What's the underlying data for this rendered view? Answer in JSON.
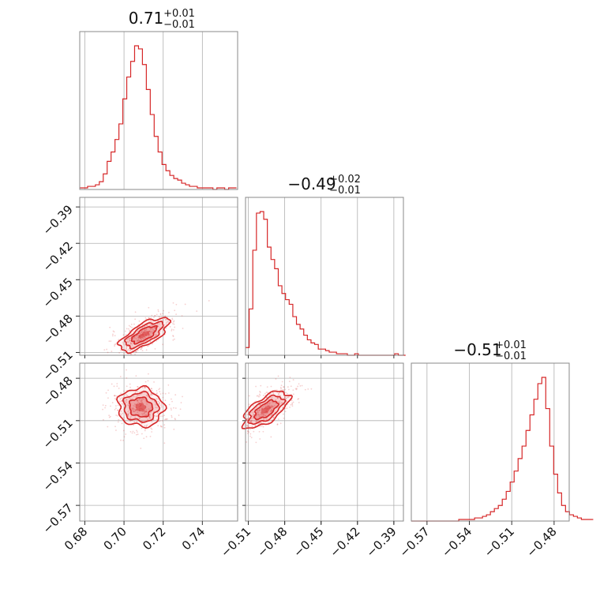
{
  "chart_data": {
    "type": "corner",
    "color": "#d62728",
    "parameters": [
      {
        "median": "0.71",
        "plus": "+0.01",
        "minus": "−0.01",
        "range": [
          0.6774,
          0.758
        ]
      },
      {
        "median": "−0.49",
        "plus": "+0.02",
        "minus": "−0.01",
        "range": [
          -0.5123,
          -0.3821
        ]
      },
      {
        "median": "−0.51",
        "plus": "+0.01",
        "minus": "−0.01",
        "range": [
          -0.5811,
          -0.4693
        ]
      }
    ],
    "ticks": [
      {
        "values": [
          0.68,
          0.7,
          0.72,
          0.74
        ],
        "labels": [
          "0.68",
          "0.70",
          "0.72",
          "0.74"
        ]
      },
      {
        "values": [
          -0.51,
          -0.48,
          -0.45,
          -0.42,
          -0.39
        ],
        "labels": [
          "−0.51",
          "−0.48",
          "−0.45",
          "−0.42",
          "−0.39"
        ]
      },
      {
        "values": [
          -0.57,
          -0.54,
          -0.51,
          -0.48
        ],
        "labels": [
          "−0.57",
          "−0.54",
          "−0.51",
          "−0.48"
        ]
      }
    ],
    "histograms": [
      {
        "param": 0,
        "bin_start": 0.6774,
        "bin_width": 0.002,
        "counts": [
          1,
          1,
          2,
          2,
          3,
          5,
          10,
          18,
          24,
          32,
          42,
          58,
          72,
          82,
          92,
          90,
          80,
          64,
          48,
          34,
          24,
          16,
          12,
          9,
          7,
          6,
          4,
          3,
          2,
          2,
          1,
          1,
          1,
          1,
          0,
          1,
          1,
          0,
          1,
          1
        ]
      },
      {
        "param": 1,
        "bin_start": -0.5123,
        "bin_width": 0.003,
        "counts": [
          5,
          30,
          68,
          92,
          93,
          88,
          70,
          62,
          56,
          45,
          40,
          36,
          33,
          25,
          20,
          17,
          13,
          10,
          8,
          7,
          4,
          4,
          3,
          2,
          2,
          1,
          1,
          1,
          0,
          0,
          1,
          0,
          0,
          0,
          0,
          0,
          0,
          0,
          0,
          0,
          0,
          1,
          0,
          0
        ]
      },
      {
        "param": 2,
        "bin_start": -0.5811,
        "bin_width": 0.0028,
        "counts": [
          0,
          0,
          0,
          0,
          0,
          0,
          0,
          0,
          0,
          0,
          0,
          0,
          1,
          1,
          1,
          1,
          2,
          2,
          3,
          4,
          6,
          8,
          10,
          14,
          19,
          25,
          32,
          40,
          48,
          58,
          68,
          78,
          88,
          92,
          72,
          48,
          30,
          18,
          10,
          6,
          4,
          3,
          2,
          1,
          1,
          1
        ]
      }
    ],
    "pairs": [
      {
        "x_param": 0,
        "y_param": 1,
        "center": [
          0.7103,
          -0.4953
        ],
        "sigma": [
          0.0063,
          0.0069
        ],
        "correlation": 0.7
      },
      {
        "x_param": 0,
        "y_param": 2,
        "center": [
          0.7085,
          -0.5005
        ],
        "sigma": [
          0.0058,
          0.0068
        ],
        "correlation": -0.05
      },
      {
        "x_param": 1,
        "y_param": 2,
        "center": [
          -0.4955,
          -0.5023
        ],
        "sigma": [
          0.0095,
          0.0065
        ],
        "correlation": 0.65
      }
    ]
  }
}
